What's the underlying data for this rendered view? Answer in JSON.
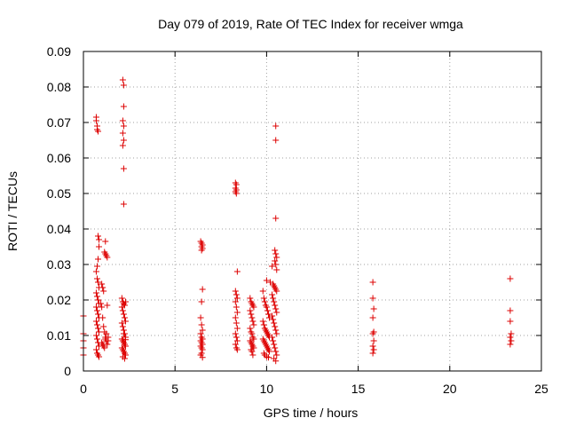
{
  "chart_data": {
    "type": "scatter",
    "title": "Day 079 of 2019, Rate Of TEC Index for receiver wmga",
    "xlabel": "GPS time / hours",
    "ylabel": "ROTI / TECUs",
    "xlim": [
      0,
      25
    ],
    "ylim": [
      0,
      0.09
    ],
    "xticks": [
      "0",
      "5",
      "10",
      "15",
      "20",
      "25"
    ],
    "yticks": [
      "0",
      "0.01",
      "0.02",
      "0.03",
      "0.04",
      "0.05",
      "0.06",
      "0.07",
      "0.08",
      "0.09"
    ],
    "grid": true,
    "marker": "plus",
    "color": "#dd0000",
    "points": [
      [
        0.0,
        0.0155
      ],
      [
        0.0,
        0.0105
      ],
      [
        0.0,
        0.0085
      ],
      [
        0.0,
        0.0065
      ],
      [
        0.0,
        0.0045
      ],
      [
        0.7,
        0.0715
      ],
      [
        0.7,
        0.0705
      ],
      [
        0.75,
        0.069
      ],
      [
        0.75,
        0.068
      ],
      [
        0.8,
        0.0675
      ],
      [
        0.8,
        0.038
      ],
      [
        0.85,
        0.037
      ],
      [
        0.85,
        0.035
      ],
      [
        0.8,
        0.0315
      ],
      [
        0.75,
        0.0295
      ],
      [
        0.7,
        0.028
      ],
      [
        0.75,
        0.026
      ],
      [
        0.8,
        0.025
      ],
      [
        0.85,
        0.0235
      ],
      [
        0.7,
        0.022
      ],
      [
        0.75,
        0.021
      ],
      [
        0.8,
        0.02
      ],
      [
        0.85,
        0.019
      ],
      [
        0.7,
        0.018
      ],
      [
        0.75,
        0.017
      ],
      [
        0.8,
        0.016
      ],
      [
        0.85,
        0.015
      ],
      [
        0.7,
        0.014
      ],
      [
        0.75,
        0.013
      ],
      [
        0.8,
        0.012
      ],
      [
        0.85,
        0.011
      ],
      [
        0.7,
        0.01
      ],
      [
        0.75,
        0.009
      ],
      [
        0.8,
        0.008
      ],
      [
        0.85,
        0.007
      ],
      [
        0.7,
        0.006
      ],
      [
        0.75,
        0.005
      ],
      [
        0.8,
        0.0045
      ],
      [
        0.85,
        0.004
      ],
      [
        1.0,
        0.0245
      ],
      [
        1.05,
        0.0235
      ],
      [
        1.1,
        0.0225
      ],
      [
        0.95,
        0.019
      ],
      [
        1.0,
        0.018
      ],
      [
        1.05,
        0.015
      ],
      [
        1.1,
        0.0125
      ],
      [
        1.15,
        0.011
      ],
      [
        1.2,
        0.0095
      ],
      [
        1.25,
        0.0085
      ],
      [
        1.0,
        0.008
      ],
      [
        1.05,
        0.0075
      ],
      [
        1.1,
        0.007
      ],
      [
        1.15,
        0.0065
      ],
      [
        1.2,
        0.009
      ],
      [
        1.3,
        0.0185
      ],
      [
        1.35,
        0.0085
      ],
      [
        1.3,
        0.0075
      ],
      [
        1.35,
        0.0095
      ],
      [
        1.25,
        0.0105
      ],
      [
        1.15,
        0.0335
      ],
      [
        1.2,
        0.033
      ],
      [
        1.25,
        0.0325
      ],
      [
        1.3,
        0.032
      ],
      [
        1.2,
        0.0365
      ],
      [
        2.15,
        0.082
      ],
      [
        2.2,
        0.0805
      ],
      [
        2.2,
        0.0745
      ],
      [
        2.15,
        0.0705
      ],
      [
        2.2,
        0.069
      ],
      [
        2.15,
        0.067
      ],
      [
        2.2,
        0.065
      ],
      [
        2.15,
        0.0635
      ],
      [
        2.2,
        0.057
      ],
      [
        2.2,
        0.047
      ],
      [
        2.1,
        0.0205
      ],
      [
        2.15,
        0.0195
      ],
      [
        2.2,
        0.019
      ],
      [
        2.25,
        0.0185
      ],
      [
        2.3,
        0.0195
      ],
      [
        2.1,
        0.018
      ],
      [
        2.15,
        0.017
      ],
      [
        2.2,
        0.016
      ],
      [
        2.25,
        0.015
      ],
      [
        2.3,
        0.014
      ],
      [
        2.1,
        0.0135
      ],
      [
        2.15,
        0.0125
      ],
      [
        2.2,
        0.0115
      ],
      [
        2.25,
        0.0105
      ],
      [
        2.3,
        0.0095
      ],
      [
        2.1,
        0.009
      ],
      [
        2.15,
        0.0085
      ],
      [
        2.2,
        0.008
      ],
      [
        2.25,
        0.0075
      ],
      [
        2.3,
        0.007
      ],
      [
        2.1,
        0.0065
      ],
      [
        2.15,
        0.006
      ],
      [
        2.2,
        0.0055
      ],
      [
        2.25,
        0.005
      ],
      [
        2.3,
        0.0045
      ],
      [
        2.15,
        0.004
      ],
      [
        2.25,
        0.0035
      ],
      [
        2.2,
        0.0105
      ],
      [
        2.3,
        0.0088
      ],
      [
        6.4,
        0.0365
      ],
      [
        6.45,
        0.036
      ],
      [
        6.5,
        0.0355
      ],
      [
        6.45,
        0.035
      ],
      [
        6.5,
        0.0345
      ],
      [
        6.45,
        0.034
      ],
      [
        6.5,
        0.023
      ],
      [
        6.45,
        0.0195
      ],
      [
        6.4,
        0.015
      ],
      [
        6.45,
        0.013
      ],
      [
        6.5,
        0.0115
      ],
      [
        6.4,
        0.0105
      ],
      [
        6.45,
        0.0095
      ],
      [
        6.5,
        0.009
      ],
      [
        6.4,
        0.0085
      ],
      [
        6.45,
        0.008
      ],
      [
        6.5,
        0.0075
      ],
      [
        6.4,
        0.007
      ],
      [
        6.45,
        0.0065
      ],
      [
        6.5,
        0.006
      ],
      [
        6.45,
        0.005
      ],
      [
        6.4,
        0.0045
      ],
      [
        6.5,
        0.0038
      ],
      [
        8.3,
        0.053
      ],
      [
        8.35,
        0.0525
      ],
      [
        8.3,
        0.0515
      ],
      [
        8.35,
        0.051
      ],
      [
        8.3,
        0.0505
      ],
      [
        8.35,
        0.05
      ],
      [
        8.4,
        0.028
      ],
      [
        8.3,
        0.0225
      ],
      [
        8.35,
        0.0215
      ],
      [
        8.4,
        0.0205
      ],
      [
        8.3,
        0.0195
      ],
      [
        8.35,
        0.018
      ],
      [
        8.4,
        0.0165
      ],
      [
        8.3,
        0.015
      ],
      [
        8.35,
        0.0135
      ],
      [
        8.4,
        0.012
      ],
      [
        8.3,
        0.0105
      ],
      [
        8.35,
        0.0095
      ],
      [
        8.4,
        0.0085
      ],
      [
        8.3,
        0.0075
      ],
      [
        8.35,
        0.0065
      ],
      [
        8.4,
        0.006
      ],
      [
        9.1,
        0.0205
      ],
      [
        9.15,
        0.0195
      ],
      [
        9.2,
        0.019
      ],
      [
        9.25,
        0.0185
      ],
      [
        9.3,
        0.018
      ],
      [
        9.1,
        0.017
      ],
      [
        9.15,
        0.016
      ],
      [
        9.2,
        0.015
      ],
      [
        9.25,
        0.014
      ],
      [
        9.3,
        0.013
      ],
      [
        9.1,
        0.012
      ],
      [
        9.15,
        0.011
      ],
      [
        9.2,
        0.0105
      ],
      [
        9.25,
        0.0095
      ],
      [
        9.3,
        0.009
      ],
      [
        9.1,
        0.0085
      ],
      [
        9.15,
        0.008
      ],
      [
        9.2,
        0.0075
      ],
      [
        9.25,
        0.007
      ],
      [
        9.3,
        0.0065
      ],
      [
        9.15,
        0.006
      ],
      [
        9.2,
        0.0055
      ],
      [
        9.25,
        0.0045
      ],
      [
        9.8,
        0.0225
      ],
      [
        9.85,
        0.0205
      ],
      [
        9.9,
        0.0195
      ],
      [
        9.95,
        0.0185
      ],
      [
        10.0,
        0.018
      ],
      [
        10.05,
        0.017
      ],
      [
        10.1,
        0.016
      ],
      [
        10.15,
        0.015
      ],
      [
        9.8,
        0.014
      ],
      [
        9.85,
        0.013
      ],
      [
        9.9,
        0.012
      ],
      [
        9.95,
        0.0115
      ],
      [
        10.0,
        0.011
      ],
      [
        10.05,
        0.0105
      ],
      [
        10.1,
        0.01
      ],
      [
        10.15,
        0.0095
      ],
      [
        9.8,
        0.009
      ],
      [
        9.85,
        0.0085
      ],
      [
        9.9,
        0.008
      ],
      [
        9.95,
        0.0075
      ],
      [
        10.0,
        0.007
      ],
      [
        10.05,
        0.0065
      ],
      [
        10.1,
        0.006
      ],
      [
        10.15,
        0.0055
      ],
      [
        9.85,
        0.005
      ],
      [
        9.9,
        0.0045
      ],
      [
        10.0,
        0.004
      ],
      [
        10.1,
        0.0038
      ],
      [
        10.0,
        0.0255
      ],
      [
        10.2,
        0.025
      ],
      [
        10.3,
        0.0295
      ],
      [
        10.35,
        0.0245
      ],
      [
        10.4,
        0.024
      ],
      [
        10.45,
        0.0235
      ],
      [
        10.5,
        0.023
      ],
      [
        10.55,
        0.0225
      ],
      [
        10.3,
        0.0215
      ],
      [
        10.35,
        0.0205
      ],
      [
        10.4,
        0.0195
      ],
      [
        10.45,
        0.0185
      ],
      [
        10.5,
        0.0175
      ],
      [
        10.55,
        0.0165
      ],
      [
        10.3,
        0.0155
      ],
      [
        10.35,
        0.0145
      ],
      [
        10.4,
        0.0135
      ],
      [
        10.45,
        0.0125
      ],
      [
        10.5,
        0.0115
      ],
      [
        10.55,
        0.0105
      ],
      [
        10.3,
        0.0095
      ],
      [
        10.35,
        0.0085
      ],
      [
        10.4,
        0.0075
      ],
      [
        10.45,
        0.0065
      ],
      [
        10.5,
        0.0055
      ],
      [
        10.55,
        0.0045
      ],
      [
        10.4,
        0.0035
      ],
      [
        10.5,
        0.0028
      ],
      [
        10.5,
        0.069
      ],
      [
        10.5,
        0.065
      ],
      [
        10.5,
        0.043
      ],
      [
        10.45,
        0.034
      ],
      [
        10.5,
        0.033
      ],
      [
        10.55,
        0.032
      ],
      [
        10.45,
        0.031
      ],
      [
        10.5,
        0.03
      ],
      [
        10.55,
        0.0285
      ],
      [
        15.8,
        0.025
      ],
      [
        15.8,
        0.0205
      ],
      [
        15.85,
        0.0175
      ],
      [
        15.8,
        0.015
      ],
      [
        15.85,
        0.011
      ],
      [
        15.8,
        0.0105
      ],
      [
        15.85,
        0.0085
      ],
      [
        15.8,
        0.007
      ],
      [
        15.85,
        0.006
      ],
      [
        15.8,
        0.005
      ],
      [
        23.3,
        0.026
      ],
      [
        23.3,
        0.017
      ],
      [
        23.3,
        0.014
      ],
      [
        23.35,
        0.0105
      ],
      [
        23.3,
        0.0095
      ],
      [
        23.35,
        0.0085
      ],
      [
        23.3,
        0.0075
      ]
    ]
  }
}
